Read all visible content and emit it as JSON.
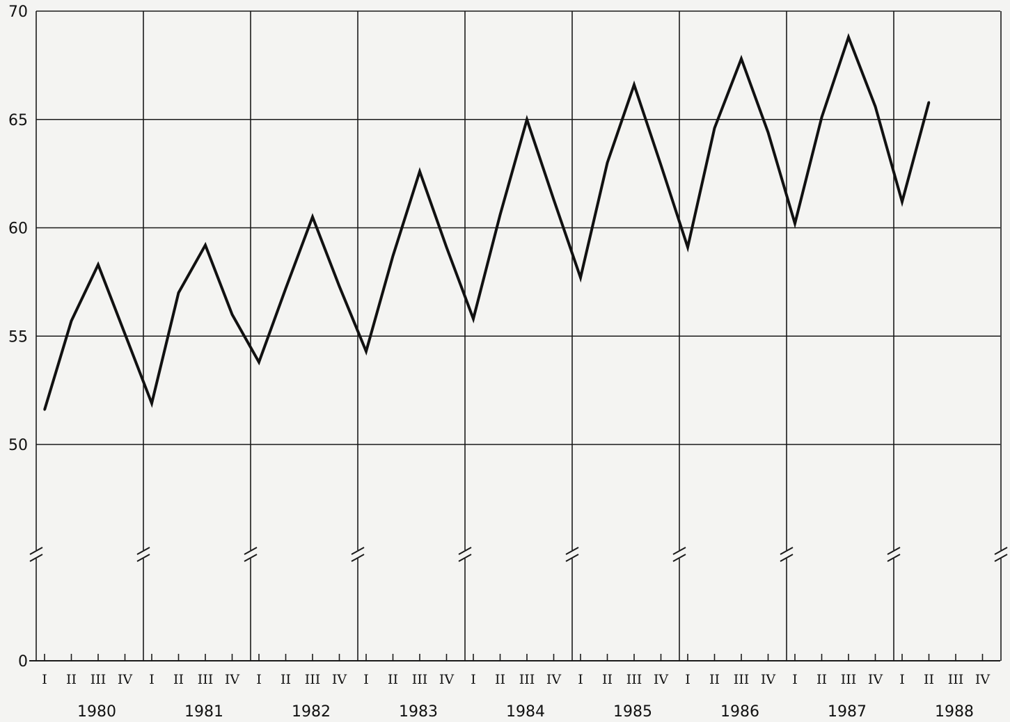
{
  "chart_data": {
    "type": "line",
    "title": "",
    "xlabel": "",
    "ylabel": "",
    "y_axis_break": true,
    "ylim": [
      50,
      70
    ],
    "yticks": [
      0,
      50,
      55,
      60,
      65,
      70
    ],
    "ytick_labels": [
      "0",
      "50",
      "55",
      "60",
      "65",
      "70"
    ],
    "quarter_labels": [
      "I",
      "II",
      "III",
      "IV"
    ],
    "years": [
      "1980",
      "1981",
      "1982",
      "1983",
      "1984",
      "1985",
      "1986",
      "1987",
      "1988"
    ],
    "grid": true,
    "series": [
      {
        "values": [
          51.6,
          55.7,
          58.3,
          55.1,
          51.9,
          57.0,
          59.2,
          56.0,
          53.8,
          57.2,
          60.5,
          57.3,
          54.3,
          58.7,
          62.6,
          59.1,
          55.8,
          60.6,
          65.0,
          61.3,
          57.7,
          63.0,
          66.6,
          62.9,
          59.1,
          64.6,
          67.8,
          64.4,
          60.2,
          65.1,
          68.8,
          65.6,
          61.2,
          65.8
        ]
      }
    ]
  }
}
